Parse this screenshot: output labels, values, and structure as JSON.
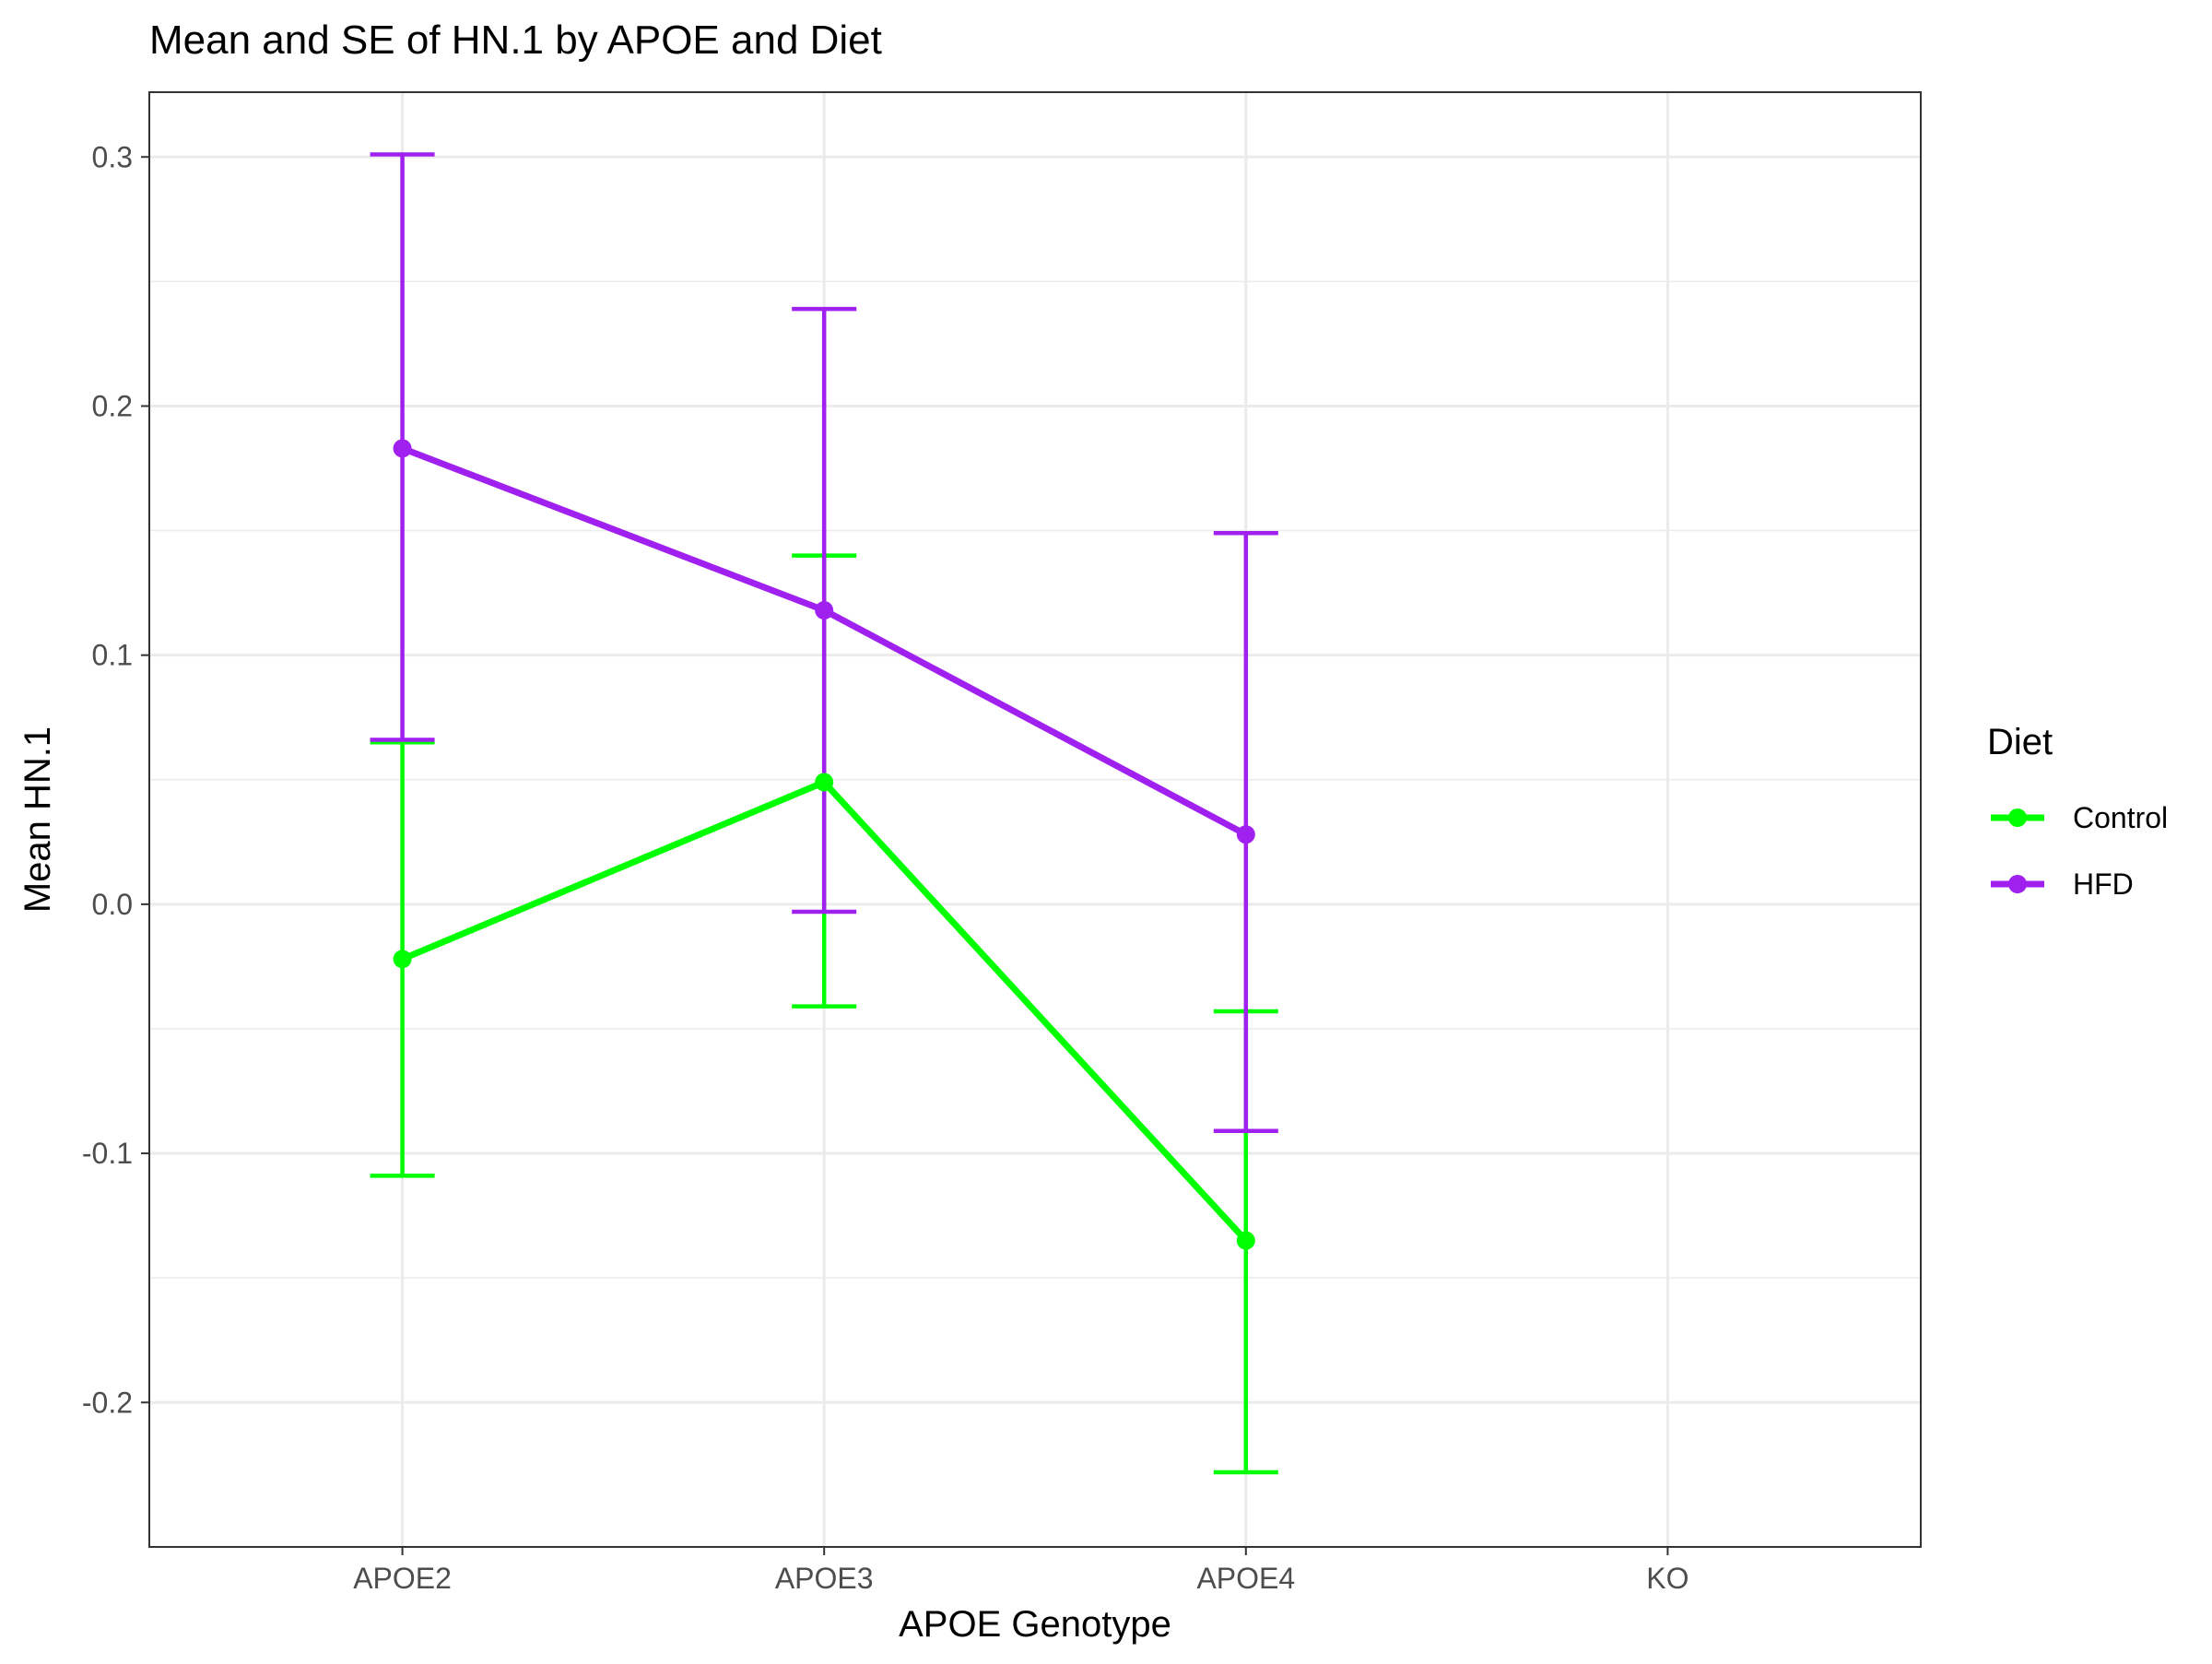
{
  "chart_data": {
    "type": "line",
    "title": "Mean and SE of HN.1 by APOE and Diet",
    "xlabel": "APOE Genotype",
    "ylabel": "Mean HN.1",
    "categories": [
      "APOE2",
      "APOE3",
      "APOE4",
      "KO"
    ],
    "ylim": [
      -0.258,
      0.326
    ],
    "yticks": [
      -0.2,
      -0.1,
      0.0,
      0.1,
      0.2,
      0.3
    ],
    "ytick_labels": [
      "-0.2",
      "-0.1",
      "0.0",
      "0.1",
      "0.2",
      "0.3"
    ],
    "grid": true,
    "legend": {
      "title": "Diet",
      "position": "right"
    },
    "error_bars": "SE",
    "series": [
      {
        "name": "Control",
        "color": "#00ff00",
        "values": [
          -0.022,
          0.049,
          -0.135,
          null
        ],
        "lower": [
          -0.109,
          -0.041,
          -0.228,
          null
        ],
        "upper": [
          0.065,
          0.14,
          -0.043,
          null
        ]
      },
      {
        "name": "HFD",
        "color": "#a020f0",
        "values": [
          0.183,
          0.118,
          0.028,
          null
        ],
        "lower": [
          0.066,
          -0.003,
          -0.091,
          null
        ],
        "upper": [
          0.301,
          0.239,
          0.149,
          null
        ]
      }
    ]
  }
}
